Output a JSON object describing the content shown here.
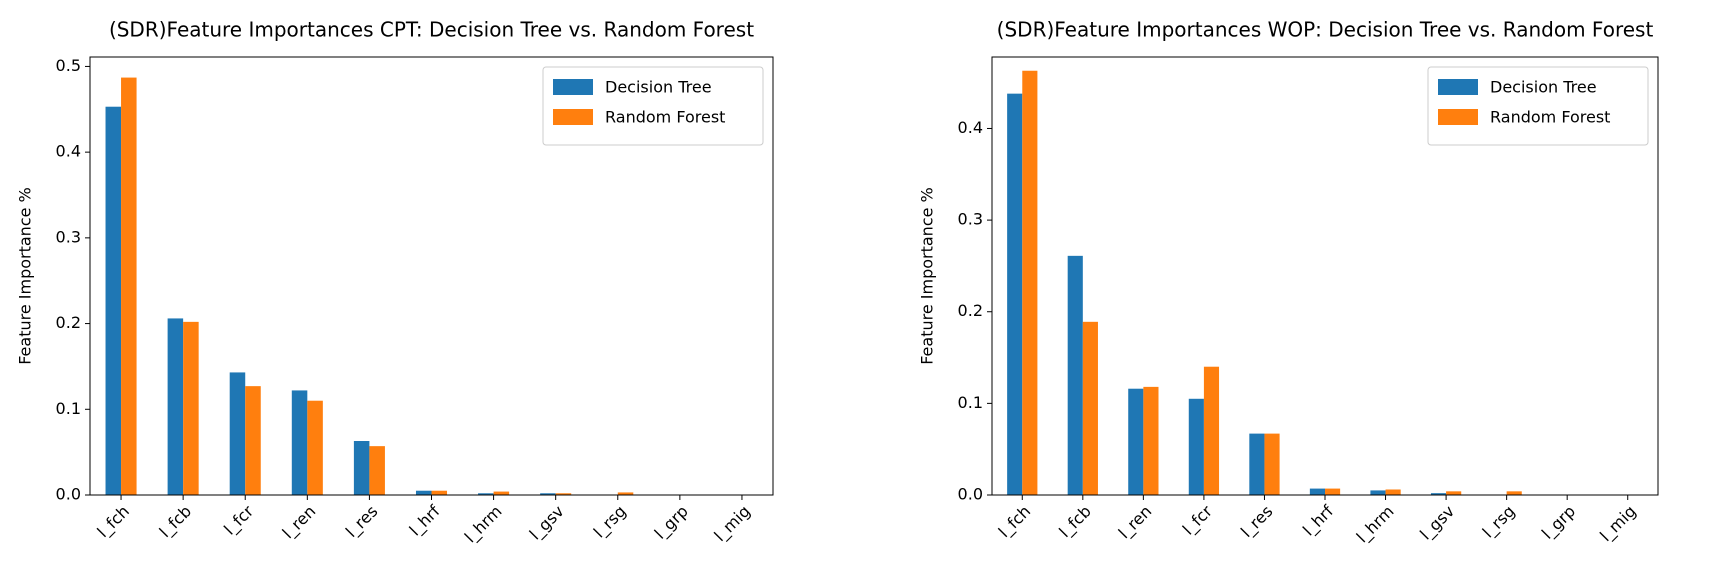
{
  "chart_data": [
    {
      "type": "bar",
      "title": "(SDR)Feature Importances CPT: Decision Tree vs. Random Forest",
      "ylabel": "Feature Importance %",
      "categories": [
        "l_fch",
        "l_fcb",
        "l_fcr",
        "l_ren",
        "l_res",
        "l_hrf",
        "l_hrm",
        "l_gsv",
        "l_rsg",
        "l_grp",
        "l_mig"
      ],
      "series": [
        {
          "name": "Decision Tree",
          "color": "#1f77b4",
          "values": [
            0.453,
            0.206,
            0.143,
            0.122,
            0.063,
            0.005,
            0.002,
            0.002,
            0,
            0,
            0
          ]
        },
        {
          "name": "Random Forest",
          "color": "#ff7f0e",
          "values": [
            0.487,
            0.202,
            0.127,
            0.11,
            0.057,
            0.005,
            0.004,
            0.002,
            0.003,
            0,
            0
          ]
        }
      ],
      "ylim": [
        0,
        0.511
      ],
      "yticks": [
        {
          "value": 0,
          "label": "0.0"
        },
        0.1,
        0.2,
        0.3,
        0.4,
        0.5
      ],
      "legend": "upper right"
    },
    {
      "type": "bar",
      "title": "(SDR)Feature Importances WOP: Decision Tree vs. Random Forest",
      "ylabel": "Feature Importance %",
      "categories": [
        "l_fch",
        "l_fcb",
        "l_ren",
        "l_fcr",
        "l_res",
        "l_hrf",
        "l_hrm",
        "l_gsv",
        "l_rsg",
        "l_grp",
        "l_mig"
      ],
      "series": [
        {
          "name": "Decision Tree",
          "color": "#1f77b4",
          "values": [
            0.438,
            0.261,
            0.116,
            0.105,
            0.067,
            0.007,
            0.005,
            0.002,
            0,
            0,
            0
          ]
        },
        {
          "name": "Random Forest",
          "color": "#ff7f0e",
          "values": [
            0.463,
            0.189,
            0.118,
            0.14,
            0.067,
            0.007,
            0.006,
            0.004,
            0.004,
            0,
            0
          ]
        }
      ],
      "ylim": [
        0,
        0.478
      ],
      "yticks": [
        {
          "value": 0,
          "label": "0.0"
        },
        0.1,
        0.2,
        0.3,
        0.4
      ],
      "legend": "upper right"
    }
  ]
}
